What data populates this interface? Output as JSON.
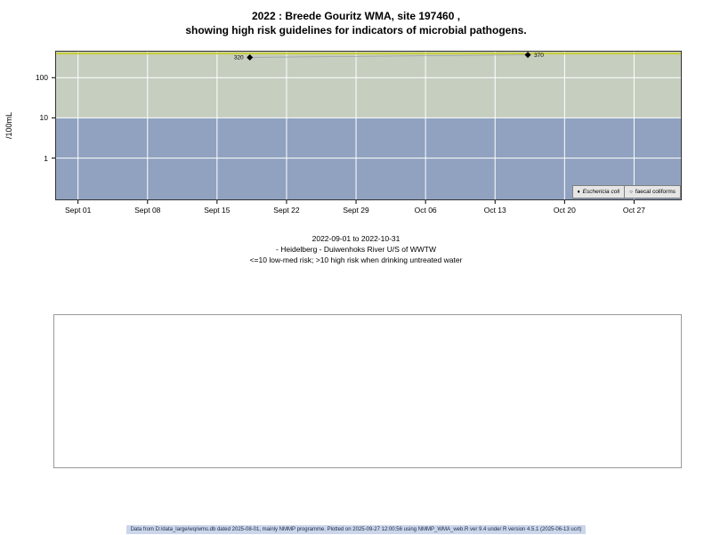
{
  "title": {
    "line1": "2022 : Breede Gouritz WMA, site 197460 ,",
    "line2": "showing high risk guidelines for indicators of microbial pathogens."
  },
  "caption": {
    "line1": "2022-09-01 to 2022-10-31",
    "line2": "- Heidelberg - Duiwenhoks River U/S of WWTW",
    "line3": "<=10 low-med risk; >10 high risk when drinking untreated water"
  },
  "footer": "Data from D:/data_large/wq/wms.db dated 2025-08-01, mainly NMMP programme. Plotted on 2025-09-27 12:00:56 using NMMP_WMA_web.R ver 9.4 under R version 4.5.1 (2025-06-13 ucrt)",
  "chart_data": {
    "type": "scatter",
    "ylabel": "/100mL",
    "y_scale": "log10",
    "y_ticks": [
      1,
      10,
      100
    ],
    "y_log_range": [
      -1.05,
      2.67
    ],
    "x_ticks": [
      {
        "label": "Sept 01",
        "day": 0
      },
      {
        "label": "Sept 08",
        "day": 7
      },
      {
        "label": "Sept 15",
        "day": 14
      },
      {
        "label": "Sept 22",
        "day": 21
      },
      {
        "label": "Sept 29",
        "day": 28
      },
      {
        "label": "Oct 06",
        "day": 35
      },
      {
        "label": "Oct 13",
        "day": 42
      },
      {
        "label": "Oct 20",
        "day": 49
      },
      {
        "label": "Oct 27",
        "day": 56
      }
    ],
    "x_day_range": [
      -2.3,
      60.8
    ],
    "guideline": {
      "value": 400,
      "color": "#c9cd36"
    },
    "risk_bands": {
      "threshold": 10,
      "high_color": "#c6cec0",
      "low_color": "#90a2c0"
    },
    "grid_color": "#ffffff",
    "series": [
      {
        "name": "Eschericia coli",
        "marker": "filled-diamond",
        "points": [
          {
            "day": 17.3,
            "value": 320,
            "label": "320",
            "label_side": "left"
          },
          {
            "day": 45.3,
            "value": 370,
            "label": "370",
            "label_side": "right"
          }
        ]
      },
      {
        "name": "faecal coliforms",
        "marker": "open-circle",
        "points": []
      }
    ],
    "legend": [
      {
        "symbol": "♦",
        "label": "Eschericia coli"
      },
      {
        "symbol": "○",
        "label": "faecal coliforms"
      }
    ]
  }
}
